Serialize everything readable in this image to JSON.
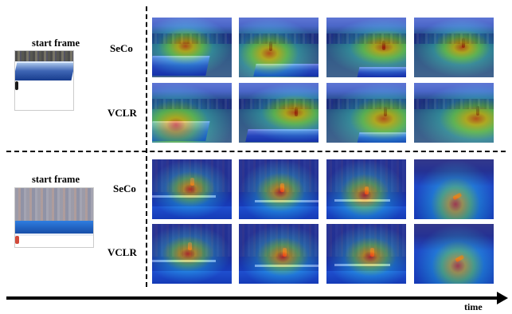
{
  "sections": [
    {
      "start_label": "start frame",
      "rows": [
        {
          "label": "SeCo",
          "heat": [
            [
              "42%",
              "48%"
            ],
            [
              "38%",
              "60%"
            ],
            [
              "72%",
              "50%"
            ],
            [
              "60%",
              "50%"
            ]
          ]
        },
        {
          "label": "VCLR",
          "heat": [
            [
              "30%",
              "70%"
            ],
            [
              "70%",
              "50%"
            ],
            [
              "72%",
              "60%"
            ],
            [
              "78%",
              "60%"
            ]
          ]
        }
      ]
    },
    {
      "start_label": "start frame",
      "rows": [
        {
          "label": "SeCo",
          "heat": [
            [
              "48%",
              "50%"
            ],
            [
              "52%",
              "55%"
            ],
            [
              "48%",
              "60%"
            ],
            [
              "52%",
              "75%"
            ]
          ]
        },
        {
          "label": "VCLR",
          "heat": [
            [
              "45%",
              "50%"
            ],
            [
              "55%",
              "55%"
            ],
            [
              "55%",
              "55%"
            ],
            [
              "55%",
              "70%"
            ]
          ]
        }
      ]
    }
  ],
  "axis": {
    "label": "time"
  }
}
